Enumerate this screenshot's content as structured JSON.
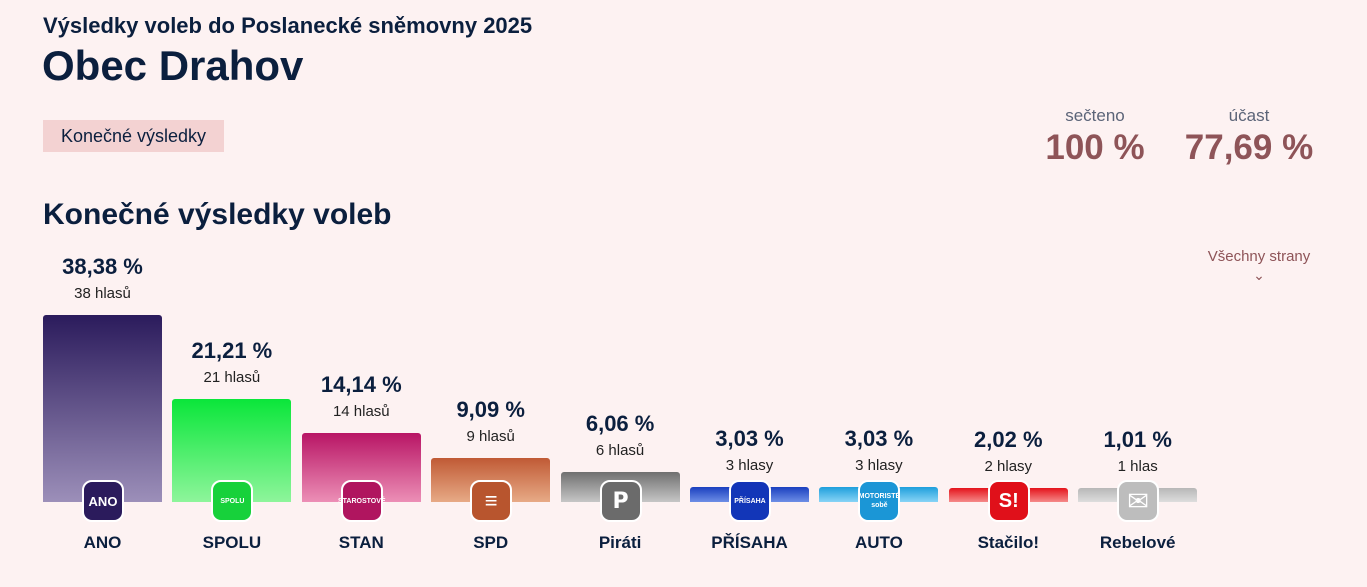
{
  "header": {
    "supertitle": "Výsledky voleb do Poslanecké sněmovny 2025",
    "title": "Obec Drahov",
    "badge": "Konečné výsledky"
  },
  "stats": {
    "counted_label": "sečteno",
    "counted_value": "100 %",
    "turnout_label": "účast",
    "turnout_value": "77,69 %"
  },
  "section_title": "Konečné výsledky voleb",
  "more_link": "Všechny strany",
  "chart_data": {
    "type": "bar",
    "title": "Konečné výsledky voleb",
    "xlabel": "",
    "ylabel": "",
    "ylim": [
      0,
      38.38
    ],
    "categories": [
      "ANO",
      "SPOLU",
      "STAN",
      "SPD",
      "Piráti",
      "PŘÍSAHA",
      "AUTO",
      "Stačilo!",
      "Rebelové"
    ],
    "values": [
      38.38,
      21.21,
      14.14,
      9.09,
      6.06,
      3.03,
      3.03,
      2.02,
      1.01
    ],
    "value_labels": [
      "38,38 %",
      "21,21 %",
      "14,14 %",
      "9,09 %",
      "6,06 %",
      "3,03 %",
      "3,03 %",
      "2,02 %",
      "1,01 %"
    ],
    "vote_labels": [
      "38 hlasů",
      "21 hlasů",
      "14 hlasů",
      "9 hlasů",
      "6 hlasů",
      "3 hlasy",
      "3 hlasy",
      "2 hlasy",
      "1 hlas"
    ],
    "logo_texts": [
      "ANO",
      "SPOLU",
      "STAROSTOVÉ",
      "",
      "",
      "PŘÍSAHA",
      "MOTORISTÉ sobě",
      "S!",
      ""
    ],
    "colors_top": [
      "#2b1b5c",
      "#0ae63a",
      "#b81565",
      "#c05a35",
      "#707070",
      "#1a3fbf",
      "#1e9fdc",
      "#e4131b",
      "#b8b8b8"
    ],
    "colors_bottom": [
      "#9c8fb9",
      "#8ef59b",
      "#ec8fb6",
      "#e7aa86",
      "#c6c6c6",
      "#6d8ee6",
      "#88d4f6",
      "#f58a8a",
      "#dddddd"
    ],
    "logo_colors": [
      "#2b1b5c",
      "#17d13b",
      "#b0155f",
      "#b8552e",
      "#6b6b6b",
      "#1236b8",
      "#1b96d6",
      "#e0101a",
      "#bdbdbd"
    ]
  }
}
